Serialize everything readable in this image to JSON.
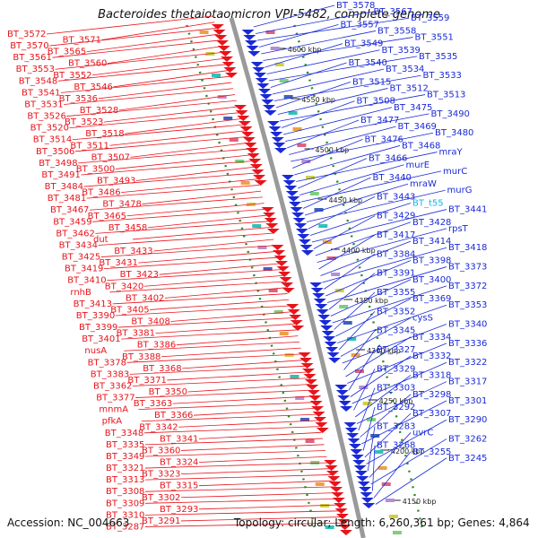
{
  "title": "Bacteroides thetaiotaomicron VPI-5482, complete genome",
  "accession": "Accession: NC_004663",
  "topology": "Topology: circular; Length: 6,260,361 bp; Genes: 4,864",
  "colors": {
    "left_strand": "#e8141b",
    "right_strand": "#1a2ad6",
    "highlight_gene": "#19b4e6",
    "backbone": "#9a9a9a",
    "tick_dots": "#2a8a2a"
  },
  "ticks": [
    {
      "label": "4600 kbp"
    },
    {
      "label": "4550 kbp"
    },
    {
      "label": "4500 kbp"
    },
    {
      "label": "4450 kbp"
    },
    {
      "label": "4400 kbp"
    },
    {
      "label": "4350 kbp"
    },
    {
      "label": "4300 kbp"
    },
    {
      "label": "4250 kbp"
    },
    {
      "label": "4200 kbp"
    },
    {
      "label": "4150 kbp"
    }
  ],
  "left_genes": [
    "BT_3572",
    "BT_3571",
    "BT_3570",
    "BT_3565",
    "BT_3561",
    "BT_3560",
    "BT_3553",
    "BT_3552",
    "BT_3548",
    "BT_3546",
    "BT_3541",
    "BT_3536",
    "BT_3531",
    "BT_3528",
    "BT_3526",
    "BT_3523",
    "BT_3520",
    "BT_3518",
    "BT_3514",
    "BT_3511",
    "BT_3506",
    "BT_3507",
    "BT_3498",
    "BT_3500",
    "BT_3491",
    "BT_3493",
    "BT_3484",
    "BT_3486",
    "BT_3481",
    "BT_3478",
    "BT_3467",
    "BT_3465",
    "BT_3459",
    "BT_3458",
    "BT_3462",
    "dut",
    "BT_3434",
    "BT_3433",
    "BT_3425",
    "BT_3431",
    "BT_3419",
    "BT_3423",
    "BT_3410",
    "BT_3420",
    "rnhB",
    "BT_3402",
    "BT_3413",
    "BT_3405",
    "BT_3390",
    "BT_3408",
    "BT_3399",
    "BT_3381",
    "BT_3401",
    "BT_3386",
    "nusA",
    "BT_3388",
    "BT_3378",
    "BT_3368",
    "BT_3383",
    "BT_3371",
    "BT_3362",
    "BT_3350",
    "BT_3377",
    "BT_3363",
    "mnmA",
    "BT_3366",
    "pfkA",
    "BT_3342",
    "BT_3348",
    "BT_3341",
    "BT_3335",
    "BT_3360",
    "BT_3349",
    "BT_3324",
    "BT_3321",
    "BT_3323",
    "BT_3313",
    "BT_3315",
    "BT_3308",
    "BT_3302",
    "BT_3309",
    "BT_3293",
    "BT_3310",
    "BT_3291",
    "BT_3287"
  ],
  "right_genes": [
    "BT_3578",
    "BT_3567",
    "BT_3559",
    "BT_3557",
    "BT_3558",
    "BT_3551",
    "BT_3549",
    "BT_3539",
    "BT_3535",
    "BT_3540",
    "BT_3534",
    "BT_3533",
    "BT_3515",
    "BT_3512",
    "BT_3513",
    "BT_3508",
    "BT_3475",
    "BT_3490",
    "BT_3477",
    "BT_3469",
    "BT_3480",
    "BT_3476",
    "BT_3468",
    "mraY",
    "BT_3466",
    "murE",
    "murC",
    "BT_3440",
    "mraW",
    "murG",
    "BT_3443",
    "BT_t55",
    "BT_3441",
    "BT_3429",
    "BT_3428",
    "rpsT",
    "BT_3417",
    "BT_3414",
    "BT_3418",
    "BT_3384",
    "BT_3398",
    "BT_3373",
    "BT_3391",
    "BT_3400",
    "BT_3372",
    "BT_3355",
    "BT_3369",
    "BT_3353",
    "BT_3352",
    "cysS",
    "BT_3340",
    "BT_3345",
    "BT_3334",
    "BT_3336",
    "BT_3327",
    "BT_3332",
    "BT_3322",
    "BT_3329",
    "BT_3318",
    "BT_3317",
    "BT_3303",
    "BT_3298",
    "BT_3301",
    "BT_3292",
    "BT_3307",
    "BT_3290",
    "BT_3283",
    "uvrC",
    "BT_3262",
    "BT_3268",
    "BT_3255",
    "BT_3245"
  ]
}
